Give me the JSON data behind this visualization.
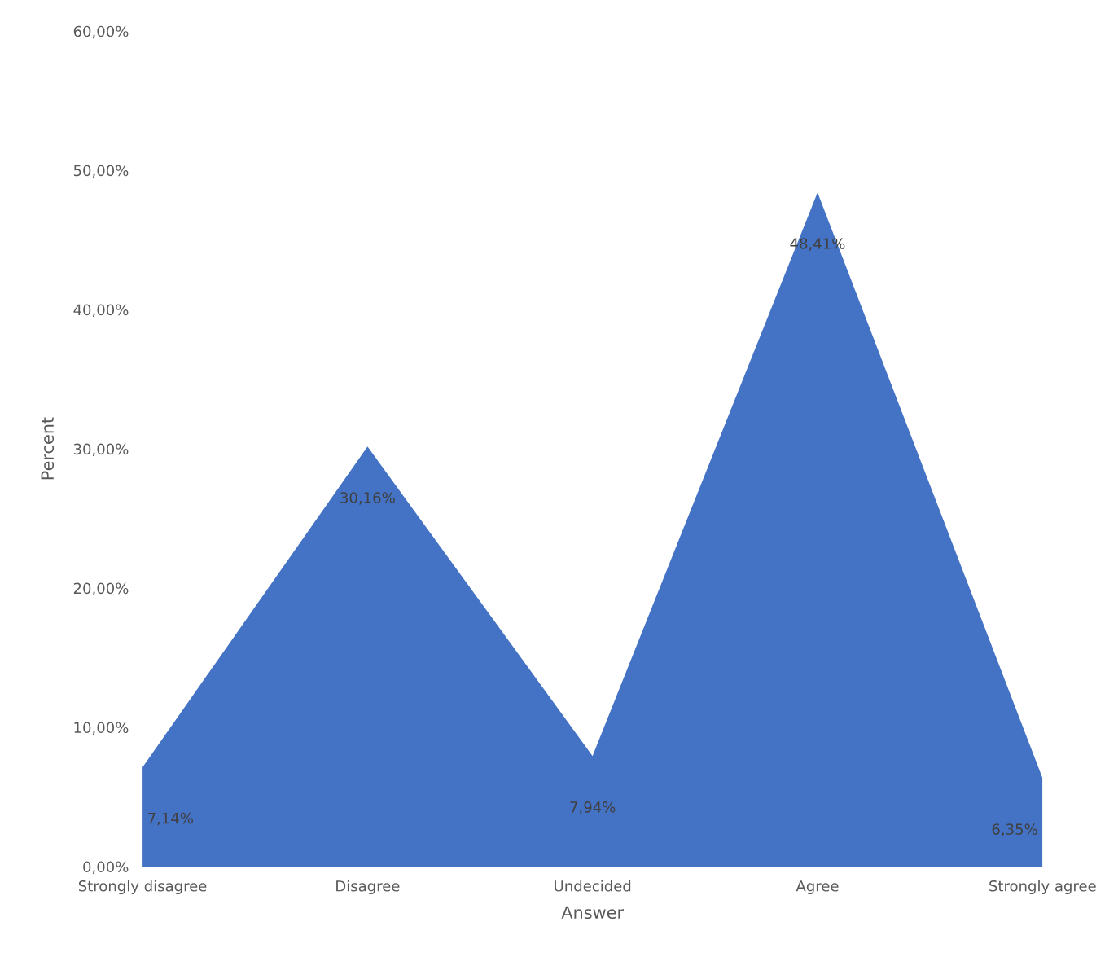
{
  "chart_data": {
    "type": "area",
    "xlabel": "Answer",
    "ylabel": "Percent",
    "categories": [
      "Strongly disagree",
      "Disagree",
      "Undecided",
      "Agree",
      "Strongly agree"
    ],
    "series": [
      {
        "color": "#4472c4",
        "values": [
          7.14,
          30.16,
          7.94,
          48.41,
          6.35
        ],
        "value_labels": [
          "7,14%",
          "30,16%",
          "7,94%",
          "48,41%",
          "6,35%"
        ]
      }
    ],
    "ylim": [
      0,
      60
    ],
    "yticks": [
      {
        "value": 0,
        "label": "0,00%"
      },
      {
        "value": 10,
        "label": "10,00%"
      },
      {
        "value": 20,
        "label": "20,00%"
      },
      {
        "value": 30,
        "label": "30,00%"
      },
      {
        "value": 40,
        "label": "40,00%"
      },
      {
        "value": 50,
        "label": "50,00%"
      },
      {
        "value": 60,
        "label": "60,00%"
      }
    ],
    "grid": false,
    "legend": false
  }
}
